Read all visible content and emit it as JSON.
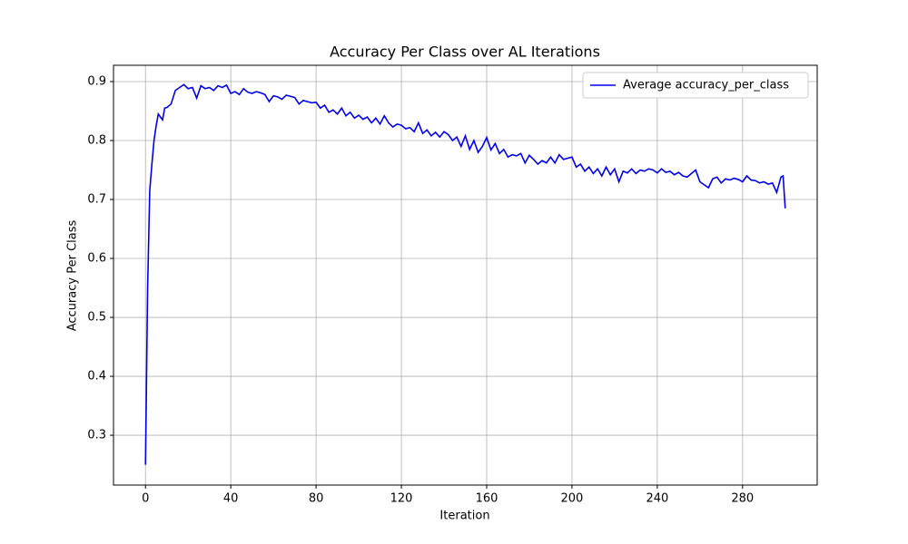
{
  "chart_data": {
    "type": "line",
    "title": "Accuracy Per Class over AL Iterations",
    "x_label": "Iteration",
    "y_label": "Accuracy Per Class",
    "x": [
      0,
      1,
      2,
      3,
      4,
      5,
      6,
      7,
      8,
      9,
      10,
      12,
      14,
      16,
      18,
      20,
      22,
      24,
      26,
      28,
      30,
      32,
      34,
      36,
      38,
      40,
      42,
      44,
      46,
      48,
      50,
      52,
      54,
      56,
      58,
      60,
      62,
      64,
      66,
      68,
      70,
      72,
      74,
      76,
      78,
      80,
      82,
      84,
      86,
      88,
      90,
      92,
      94,
      96,
      98,
      100,
      102,
      104,
      106,
      108,
      110,
      112,
      114,
      116,
      118,
      120,
      122,
      124,
      126,
      128,
      130,
      132,
      134,
      136,
      138,
      140,
      142,
      144,
      146,
      148,
      150,
      152,
      154,
      156,
      158,
      160,
      162,
      164,
      166,
      168,
      170,
      172,
      174,
      176,
      178,
      180,
      182,
      184,
      186,
      188,
      190,
      192,
      194,
      196,
      198,
      200,
      202,
      204,
      206,
      208,
      210,
      212,
      214,
      216,
      218,
      220,
      222,
      224,
      226,
      228,
      230,
      232,
      234,
      236,
      238,
      240,
      242,
      244,
      246,
      248,
      250,
      252,
      254,
      256,
      258,
      260,
      262,
      264,
      266,
      268,
      270,
      272,
      274,
      276,
      278,
      280,
      282,
      284,
      286,
      288,
      290,
      292,
      294,
      296,
      298,
      299,
      300
    ],
    "series": [
      {
        "name": "Average accuracy_per_class",
        "color": "#0000ee",
        "values": [
          0.25,
          0.55,
          0.715,
          0.76,
          0.8,
          0.825,
          0.845,
          0.84,
          0.835,
          0.855,
          0.856,
          0.862,
          0.885,
          0.89,
          0.895,
          0.888,
          0.89,
          0.872,
          0.893,
          0.888,
          0.89,
          0.885,
          0.893,
          0.89,
          0.894,
          0.88,
          0.883,
          0.878,
          0.888,
          0.882,
          0.88,
          0.883,
          0.881,
          0.878,
          0.866,
          0.876,
          0.874,
          0.87,
          0.877,
          0.875,
          0.873,
          0.862,
          0.868,
          0.866,
          0.864,
          0.865,
          0.855,
          0.86,
          0.848,
          0.852,
          0.845,
          0.855,
          0.842,
          0.848,
          0.838,
          0.843,
          0.836,
          0.84,
          0.83,
          0.838,
          0.828,
          0.842,
          0.83,
          0.823,
          0.828,
          0.826,
          0.82,
          0.822,
          0.815,
          0.83,
          0.812,
          0.818,
          0.808,
          0.814,
          0.806,
          0.815,
          0.81,
          0.8,
          0.806,
          0.79,
          0.808,
          0.785,
          0.8,
          0.78,
          0.79,
          0.805,
          0.784,
          0.795,
          0.778,
          0.785,
          0.772,
          0.776,
          0.774,
          0.778,
          0.762,
          0.775,
          0.768,
          0.76,
          0.766,
          0.762,
          0.772,
          0.762,
          0.776,
          0.768,
          0.77,
          0.772,
          0.755,
          0.76,
          0.748,
          0.755,
          0.744,
          0.752,
          0.74,
          0.755,
          0.742,
          0.752,
          0.73,
          0.748,
          0.745,
          0.752,
          0.744,
          0.75,
          0.748,
          0.752,
          0.75,
          0.745,
          0.752,
          0.746,
          0.748,
          0.742,
          0.746,
          0.74,
          0.738,
          0.744,
          0.75,
          0.73,
          0.725,
          0.72,
          0.735,
          0.738,
          0.728,
          0.735,
          0.733,
          0.736,
          0.734,
          0.73,
          0.74,
          0.733,
          0.732,
          0.728,
          0.73,
          0.726,
          0.728,
          0.712,
          0.738,
          0.74,
          0.685
        ]
      }
    ],
    "xlim": [
      -15,
      315
    ],
    "ylim": [
      0.2155,
      0.9277
    ],
    "xticks": [
      0,
      40,
      80,
      120,
      160,
      200,
      240,
      280
    ],
    "yticks": [
      0.3,
      0.4,
      0.5,
      0.6,
      0.7,
      0.8,
      0.9
    ],
    "grid": true,
    "legend": "upper right"
  }
}
